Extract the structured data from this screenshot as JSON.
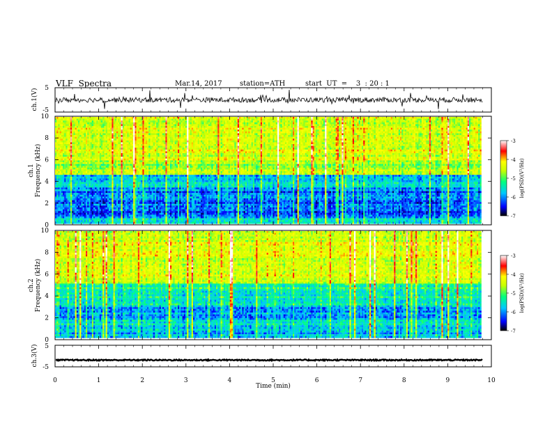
{
  "header": {
    "title": "VLF  Spectra",
    "date": "Mar.14, 2017",
    "station": "station=ATH",
    "start_ut": "start  UT  =    3  : 20 : 1"
  },
  "chart_data": [
    {
      "type": "line",
      "panel": "ch1-waveform",
      "ylabel": "ch.1(V)",
      "ylim": [
        -5,
        5
      ],
      "yticks": [
        "5",
        "-5"
      ],
      "xlim": [
        0,
        10
      ],
      "baseline_level": 0,
      "trace_color": "#000000"
    },
    {
      "type": "heatmap",
      "panel": "ch1-spectrogram",
      "ylabel": "ch.1\nFrequency (kHz)",
      "ylim": [
        0,
        10
      ],
      "yticks": [
        "0",
        "2",
        "4",
        "6",
        "8",
        "10"
      ],
      "xlim": [
        0,
        9.8
      ],
      "colorbar": {
        "label": "log(PSD)(V²/Hz)",
        "range": [
          -7,
          -3
        ],
        "ticks": [
          "-3",
          "-4",
          "-5",
          "-6",
          "-7"
        ]
      }
    },
    {
      "type": "heatmap",
      "panel": "ch2-spectrogram",
      "ylabel": "ch.2\nFrequency (kHz)",
      "ylim": [
        0,
        10
      ],
      "yticks": [
        "0",
        "2",
        "4",
        "6",
        "8",
        "10"
      ],
      "xlim": [
        0,
        9.8
      ],
      "colorbar": {
        "label": "log(PSD)(V²/Hz)",
        "range": [
          -7,
          -3
        ],
        "ticks": [
          "-3",
          "-4",
          "-5",
          "-6",
          "-7"
        ]
      }
    },
    {
      "type": "line",
      "panel": "ch3-waveform",
      "ylabel": "ch.3(V)",
      "ylim": [
        -5,
        5
      ],
      "yticks": [
        "5",
        "-5"
      ],
      "xlim": [
        0,
        10
      ],
      "baseline_level": -2,
      "trace_color": "#000000"
    }
  ],
  "xaxis": {
    "label": "Time  (min)",
    "range": [
      0,
      10
    ],
    "ticks": [
      "0",
      "1",
      "2",
      "3",
      "4",
      "5",
      "6",
      "7",
      "8",
      "9",
      "10"
    ]
  },
  "colorscale": [
    "#000000",
    "#0000ff",
    "#00c8ff",
    "#00ff80",
    "#c8ff00",
    "#ffff00",
    "#ff0000",
    "#ffffff"
  ]
}
